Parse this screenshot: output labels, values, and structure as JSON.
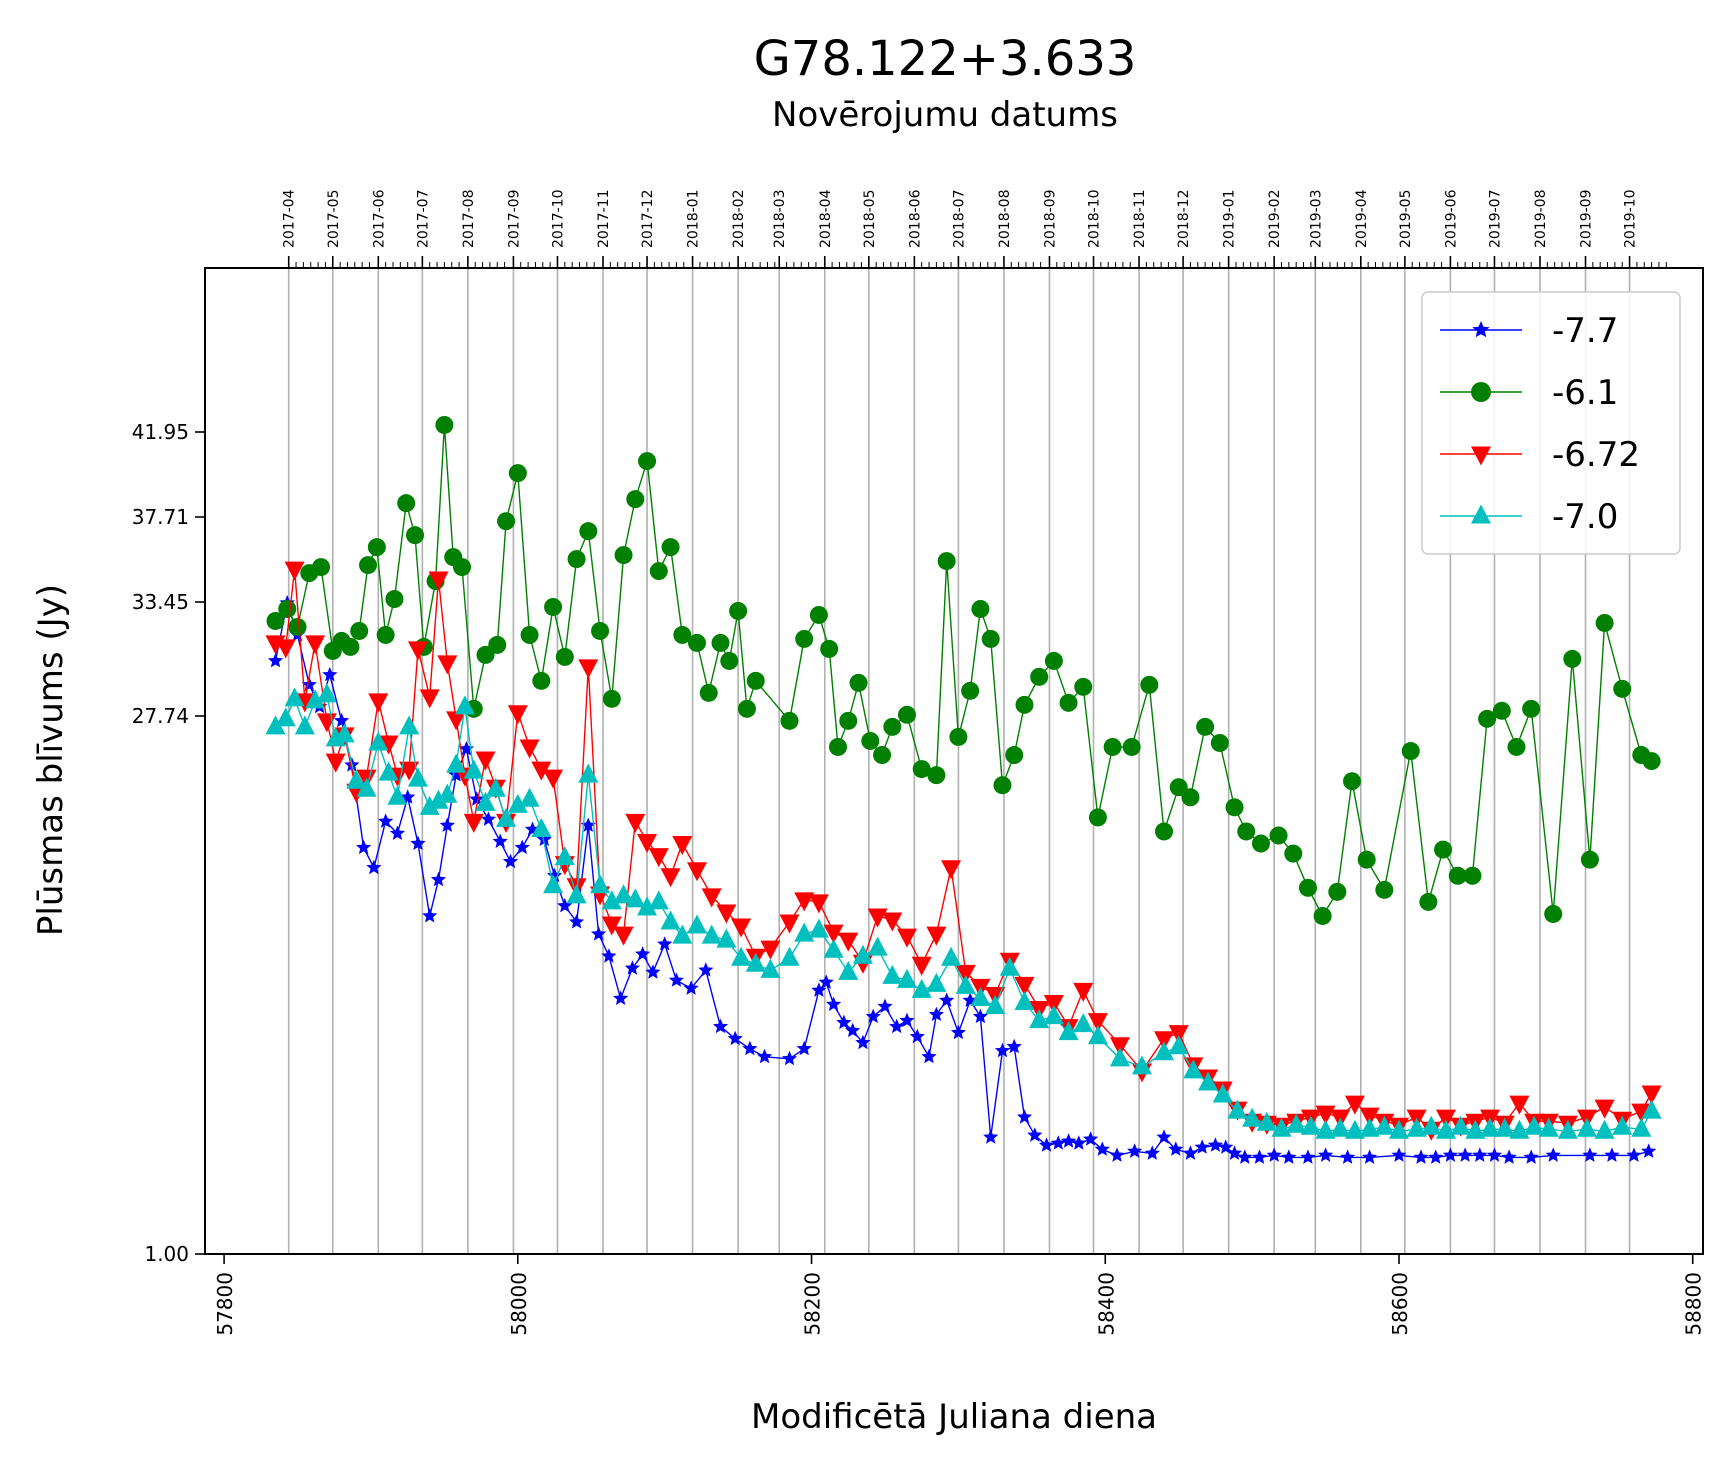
{
  "chart_data": {
    "type": "line",
    "title": "G78.122+3.633",
    "top_axis_label": "Novērojumu datums",
    "xlabel": "Modificētā Juliana diena",
    "ylabel": "Plūsmas blīvums (Jy)",
    "xlim": [
      57787,
      58807
    ],
    "ylim": [
      1.0,
      50
    ],
    "x_ticks": [
      "57800",
      "58000",
      "58200",
      "58400",
      "58600",
      "58800"
    ],
    "y_ticks": [
      "1.00",
      "27.74",
      "33.45",
      "37.71",
      "41.95"
    ],
    "y_tick_values": [
      1.0,
      27.74,
      33.45,
      37.71,
      41.95
    ],
    "y_scale": "piecewise (labels at listed tick values)",
    "grid": "vertical lines at month boundaries",
    "legend_position": "top-right",
    "top_axis_months": [
      {
        "label": "2017-04",
        "mjd": 57844
      },
      {
        "label": "2017-05",
        "mjd": 57874
      },
      {
        "label": "2017-06",
        "mjd": 57905
      },
      {
        "label": "2017-07",
        "mjd": 57935
      },
      {
        "label": "2017-08",
        "mjd": 57966
      },
      {
        "label": "2017-09",
        "mjd": 57997
      },
      {
        "label": "2017-10",
        "mjd": 58027
      },
      {
        "label": "2017-11",
        "mjd": 58058
      },
      {
        "label": "2017-12",
        "mjd": 58088
      },
      {
        "label": "2018-01",
        "mjd": 58119
      },
      {
        "label": "2018-02",
        "mjd": 58150
      },
      {
        "label": "2018-03",
        "mjd": 58178
      },
      {
        "label": "2018-04",
        "mjd": 58209
      },
      {
        "label": "2018-05",
        "mjd": 58239
      },
      {
        "label": "2018-06",
        "mjd": 58270
      },
      {
        "label": "2018-07",
        "mjd": 58300
      },
      {
        "label": "2018-08",
        "mjd": 58331
      },
      {
        "label": "2018-09",
        "mjd": 58362
      },
      {
        "label": "2018-10",
        "mjd": 58392
      },
      {
        "label": "2018-11",
        "mjd": 58423
      },
      {
        "label": "2018-12",
        "mjd": 58453
      },
      {
        "label": "2019-01",
        "mjd": 58484
      },
      {
        "label": "2019-02",
        "mjd": 58515
      },
      {
        "label": "2019-03",
        "mjd": 58543
      },
      {
        "label": "2019-04",
        "mjd": 58574
      },
      {
        "label": "2019-05",
        "mjd": 58604
      },
      {
        "label": "2019-06",
        "mjd": 58635
      },
      {
        "label": "2019-07",
        "mjd": 58665
      },
      {
        "label": "2019-08",
        "mjd": 58696
      },
      {
        "label": "2019-09",
        "mjd": 58727
      },
      {
        "label": "2019-10",
        "mjd": 58757
      }
    ],
    "series": [
      {
        "name": "-7.7",
        "color": "#0000ff",
        "marker": "star",
        "x": [
          57835,
          57843,
          57850,
          57858,
          57865,
          57872,
          57880,
          57887,
          57895,
          57902,
          57910,
          57918,
          57925,
          57932,
          57940,
          57946,
          57952,
          57958,
          57965,
          57972,
          57980,
          57988,
          57995,
          58003,
          58010,
          58018,
          58025,
          58032,
          58040,
          58048,
          58055,
          58062,
          58070,
          58078,
          58085,
          58092,
          58100,
          58108,
          58118,
          58128,
          58138,
          58148,
          58158,
          58168,
          58185,
          58195,
          58205,
          58210,
          58215,
          58222,
          58228,
          58235,
          58242,
          58250,
          58258,
          58265,
          58272,
          58280,
          58285,
          58292,
          58300,
          58308,
          58315,
          58322,
          58330,
          58338,
          58345,
          58352,
          58360,
          58368,
          58375,
          58382,
          58390,
          58398,
          58408,
          58420,
          58432,
          58440,
          58448,
          58458,
          58466,
          58475,
          58482,
          58488,
          58495,
          58505,
          58515,
          58525,
          58538,
          58550,
          58565,
          58580,
          58600,
          58615,
          58625,
          58635,
          58645,
          58655,
          58665,
          58675,
          58690,
          58705,
          58730,
          58745,
          58760,
          58770
        ],
        "y": [
          30.5,
          33.4,
          31.8,
          29.3,
          28.2,
          29.8,
          27.5,
          25.3,
          21.2,
          20.2,
          22.5,
          21.9,
          23.7,
          21.4,
          17.8,
          19.6,
          22.3,
          24.8,
          26.1,
          23.6,
          22.6,
          21.5,
          20.5,
          21.2,
          22.1,
          21.6,
          19.8,
          18.3,
          17.5,
          22.3,
          16.9,
          15.8,
          13.7,
          15.2,
          15.9,
          15.0,
          16.4,
          14.6,
          14.2,
          15.1,
          12.3,
          11.7,
          11.2,
          10.8,
          10.7,
          11.2,
          14.1,
          14.5,
          13.4,
          12.5,
          12.1,
          11.5,
          12.8,
          13.3,
          12.3,
          12.6,
          11.8,
          10.8,
          12.9,
          13.6,
          12.0,
          13.6,
          12.8,
          6.8,
          11.1,
          11.3,
          7.8,
          6.9,
          6.4,
          6.5,
          6.6,
          6.5,
          6.7,
          6.2,
          5.9,
          6.1,
          6.0,
          6.8,
          6.2,
          6.0,
          6.3,
          6.4,
          6.3,
          6.0,
          5.8,
          5.8,
          5.9,
          5.8,
          5.8,
          5.9,
          5.8,
          5.8,
          5.9,
          5.8,
          5.8,
          5.9,
          5.9,
          5.9,
          5.9,
          5.8,
          5.8,
          5.9,
          5.9,
          5.9,
          5.9,
          6.1
        ]
      },
      {
        "name": "-6.1",
        "color": "#008000",
        "marker": "circle",
        "x": [
          57835,
          57843,
          57850,
          57858,
          57866,
          57874,
          57880,
          57886,
          57892,
          57898,
          57904,
          57910,
          57916,
          57924,
          57930,
          57936,
          57944,
          57950,
          57956,
          57962,
          57970,
          57978,
          57986,
          57992,
          58000,
          58008,
          58016,
          58024,
          58032,
          58040,
          58048,
          58056,
          58064,
          58072,
          58080,
          58088,
          58096,
          58104,
          58112,
          58122,
          58130,
          58138,
          58144,
          58150,
          58156,
          58162,
          58185,
          58195,
          58205,
          58212,
          58218,
          58225,
          58232,
          58240,
          58248,
          58255,
          58265,
          58275,
          58285,
          58292,
          58300,
          58308,
          58315,
          58322,
          58330,
          58338,
          58345,
          58355,
          58365,
          58375,
          58385,
          58395,
          58405,
          58418,
          58430,
          58440,
          58450,
          58458,
          58468,
          58478,
          58488,
          58496,
          58506,
          58518,
          58528,
          58538,
          58548,
          58558,
          58568,
          58578,
          58590,
          58608,
          58620,
          58630,
          58640,
          58650,
          58660,
          58670,
          58680,
          58690,
          58705,
          58718,
          58730,
          58740,
          58752,
          58765,
          58772
        ],
        "y": [
          32.5,
          33.1,
          32.2,
          34.9,
          35.2,
          31.0,
          31.5,
          31.2,
          32.0,
          35.3,
          36.2,
          31.8,
          33.6,
          38.4,
          36.8,
          31.2,
          34.5,
          42.3,
          35.7,
          35.2,
          28.1,
          30.8,
          31.3,
          37.5,
          39.9,
          31.8,
          29.5,
          33.2,
          30.7,
          35.6,
          37.0,
          32.0,
          28.6,
          35.8,
          38.6,
          40.5,
          35.0,
          36.2,
          31.8,
          31.4,
          28.9,
          31.4,
          30.5,
          33.0,
          28.1,
          29.5,
          27.5,
          31.6,
          32.8,
          31.1,
          26.2,
          27.5,
          29.4,
          26.5,
          25.8,
          27.2,
          27.8,
          25.1,
          24.8,
          35.5,
          26.7,
          29.0,
          33.1,
          31.6,
          24.3,
          25.8,
          28.3,
          29.7,
          30.5,
          28.4,
          29.2,
          22.7,
          26.2,
          26.2,
          29.3,
          22.0,
          24.2,
          23.7,
          27.2,
          26.4,
          23.2,
          22.0,
          21.4,
          21.8,
          20.9,
          19.2,
          17.8,
          19.0,
          24.5,
          20.6,
          19.1,
          26.0,
          18.5,
          21.1,
          19.8,
          19.8,
          27.6,
          28.0,
          26.2,
          28.1,
          17.9,
          30.6,
          20.6,
          32.4,
          29.1,
          25.8,
          25.5
        ]
      },
      {
        "name": "-6.72",
        "color": "#ff0000",
        "marker": "triangle-down",
        "x": [
          57835,
          57842,
          57848,
          57855,
          57862,
          57870,
          57876,
          57882,
          57890,
          57897,
          57905,
          57912,
          57918,
          57926,
          57932,
          57940,
          57946,
          57952,
          57958,
          57964,
          57970,
          57978,
          57985,
          57992,
          58000,
          58008,
          58016,
          58024,
          58032,
          58040,
          58048,
          58056,
          58064,
          58072,
          58080,
          58088,
          58096,
          58104,
          58112,
          58122,
          58132,
          58142,
          58152,
          58162,
          58172,
          58185,
          58195,
          58205,
          58215,
          58225,
          58235,
          58245,
          58255,
          58265,
          58275,
          58285,
          58295,
          58305,
          58315,
          58325,
          58335,
          58345,
          58355,
          58365,
          58375,
          58385,
          58395,
          58410,
          58425,
          58440,
          58450,
          58460,
          58470,
          58480,
          58490,
          58500,
          58510,
          58520,
          58530,
          58540,
          58550,
          58560,
          58570,
          58580,
          58590,
          58600,
          58612,
          58622,
          58632,
          58642,
          58652,
          58662,
          58672,
          58682,
          58692,
          58702,
          58715,
          58728,
          58740,
          58752,
          58765,
          58772
        ],
        "y": [
          31.4,
          31.2,
          35.1,
          28.5,
          31.4,
          27.5,
          25.5,
          26.8,
          24.0,
          24.7,
          28.5,
          26.4,
          24.8,
          25.1,
          31.1,
          28.7,
          34.6,
          30.4,
          27.6,
          24.8,
          22.5,
          25.6,
          24.2,
          22.5,
          27.9,
          26.2,
          25.1,
          24.7,
          20.4,
          19.3,
          30.2,
          18.9,
          17.4,
          16.9,
          22.5,
          21.5,
          20.8,
          19.8,
          21.4,
          20.1,
          18.8,
          18.0,
          17.3,
          15.8,
          16.2,
          17.5,
          18.6,
          18.5,
          17.0,
          16.6,
          15.5,
          17.8,
          17.6,
          16.8,
          15.4,
          16.9,
          20.2,
          15.0,
          14.3,
          13.9,
          15.6,
          14.4,
          13.2,
          13.5,
          12.3,
          14.1,
          12.6,
          11.4,
          10.1,
          11.7,
          12.0,
          10.4,
          9.8,
          9.2,
          8.2,
          7.6,
          7.5,
          7.4,
          7.6,
          7.8,
          8.0,
          7.8,
          8.5,
          7.9,
          7.6,
          7.4,
          7.8,
          7.2,
          7.8,
          7.4,
          7.6,
          7.8,
          7.5,
          8.5,
          7.6,
          7.6,
          7.5,
          7.8,
          8.3,
          7.7,
          8.1,
          9.0
        ]
      },
      {
        "name": "-7.0",
        "color": "#00bfbf",
        "marker": "triangle-up",
        "x": [
          57835,
          57842,
          57848,
          57855,
          57862,
          57870,
          57876,
          57882,
          57890,
          57897,
          57905,
          57912,
          57918,
          57926,
          57932,
          57940,
          57946,
          57952,
          57958,
          57964,
          57970,
          57978,
          57985,
          57992,
          58000,
          58008,
          58016,
          58024,
          58032,
          58040,
          58048,
          58056,
          58064,
          58072,
          58080,
          58088,
          58096,
          58104,
          58112,
          58122,
          58132,
          58142,
          58152,
          58162,
          58172,
          58185,
          58195,
          58205,
          58215,
          58225,
          58235,
          58245,
          58255,
          58265,
          58275,
          58285,
          58295,
          58305,
          58315,
          58325,
          58335,
          58345,
          58355,
          58365,
          58375,
          58385,
          58395,
          58410,
          58425,
          58440,
          58450,
          58460,
          58470,
          58480,
          58490,
          58500,
          58510,
          58520,
          58530,
          58540,
          58550,
          58560,
          58570,
          58580,
          58590,
          58600,
          58612,
          58622,
          58632,
          58642,
          58652,
          58662,
          58672,
          58682,
          58692,
          58702,
          58715,
          58728,
          58740,
          58752,
          58765,
          58772
        ],
        "y": [
          27.2,
          27.6,
          28.6,
          27.2,
          28.5,
          28.8,
          26.6,
          26.8,
          24.5,
          24.1,
          26.4,
          24.9,
          23.7,
          27.2,
          24.6,
          23.2,
          23.5,
          23.8,
          25.3,
          28.2,
          25.0,
          23.4,
          24.1,
          22.6,
          23.3,
          23.6,
          22.1,
          19.3,
          20.7,
          18.8,
          24.8,
          19.3,
          18.5,
          18.8,
          18.6,
          18.2,
          18.5,
          17.5,
          16.8,
          17.3,
          16.8,
          16.6,
          15.7,
          15.4,
          15.1,
          15.7,
          16.9,
          17.1,
          16.1,
          15.0,
          15.8,
          16.2,
          14.8,
          14.6,
          14.1,
          14.4,
          15.7,
          14.3,
          13.7,
          13.3,
          15.2,
          13.5,
          12.6,
          12.8,
          12.0,
          12.4,
          11.8,
          10.7,
          10.3,
          11.0,
          11.3,
          10.1,
          9.5,
          8.9,
          8.1,
          7.7,
          7.5,
          7.2,
          7.4,
          7.3,
          7.1,
          7.2,
          7.1,
          7.2,
          7.3,
          7.1,
          7.2,
          7.3,
          7.1,
          7.3,
          7.1,
          7.2,
          7.2,
          7.1,
          7.3,
          7.2,
          7.1,
          7.2,
          7.1,
          7.3,
          7.2,
          8.1
        ]
      }
    ]
  }
}
